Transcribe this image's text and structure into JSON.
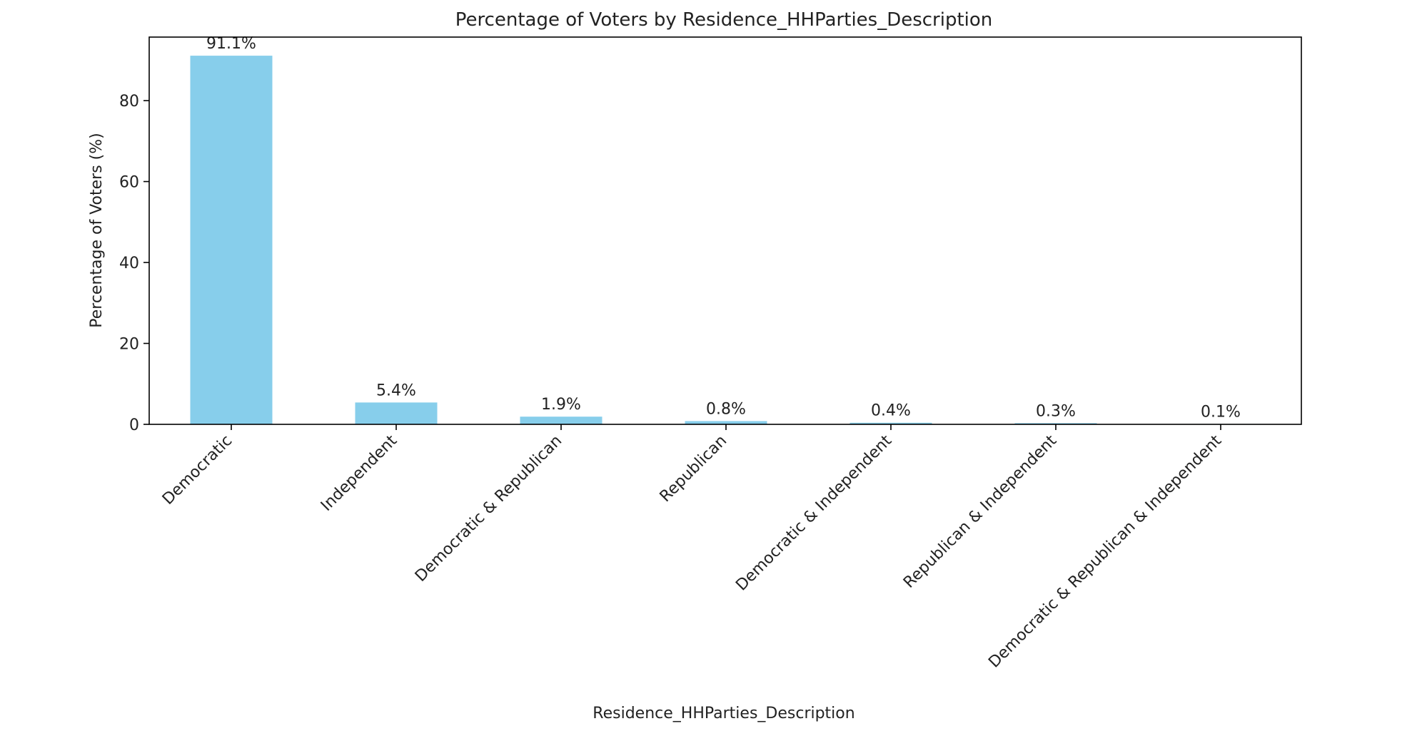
{
  "chart_data": {
    "type": "bar",
    "title": "Percentage of Voters by Residence_HHParties_Description",
    "xlabel": "Residence_HHParties_Description",
    "ylabel": "Percentage of Voters (%)",
    "categories": [
      "Democratic",
      "Independent",
      "Democratic & Republican",
      "Republican",
      "Democratic & Independent",
      "Republican & Independent",
      "Democratic & Republican & Independent"
    ],
    "values": [
      91.1,
      5.4,
      1.9,
      0.8,
      0.4,
      0.3,
      0.1
    ],
    "data_labels": [
      "91.1%",
      "5.4%",
      "1.9%",
      "0.8%",
      "0.4%",
      "0.3%",
      "0.1%"
    ],
    "yticks": [
      0,
      20,
      40,
      60,
      80
    ],
    "ylim": [
      0,
      95.7
    ],
    "grid": false,
    "bar_color": "#87CEEB"
  }
}
